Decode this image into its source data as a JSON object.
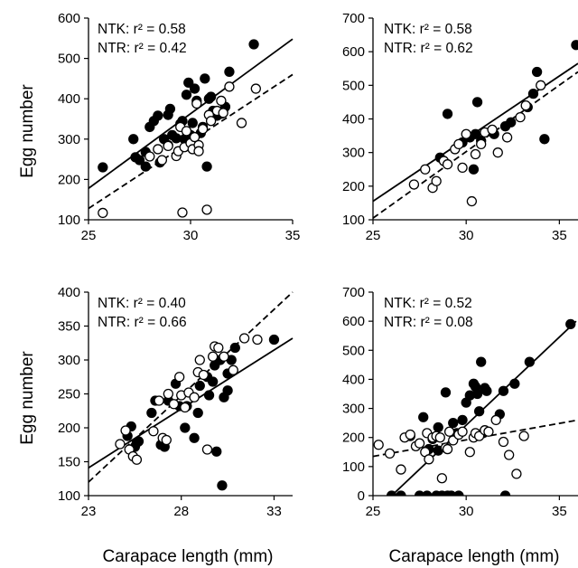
{
  "figure": {
    "ylabel": "Egg number",
    "xlabel": "Carapace length (mm)"
  },
  "chart_data": [
    {
      "type": "scatter",
      "panel": "top-left",
      "xlim": [
        25,
        35
      ],
      "ylim": [
        100,
        600
      ],
      "xticks": [
        "25",
        "30",
        "35"
      ],
      "yticks": [
        "100",
        "200",
        "300",
        "400",
        "500",
        "600"
      ],
      "xlabel": "",
      "ylabel": "Egg number",
      "grid": false,
      "annotations": [
        "NTK: r² = 0.58",
        "NTR: r² = 0.42"
      ],
      "series": [
        {
          "style": "filled",
          "line": "solid",
          "fit": [
            [
              25,
              178
            ],
            [
              35,
              548
            ]
          ],
          "points": [
            [
              25.7,
              230
            ],
            [
              27.2,
              300
            ],
            [
              27.3,
              255
            ],
            [
              27.5,
              248
            ],
            [
              27.8,
              232
            ],
            [
              27.8,
              268
            ],
            [
              28.0,
              330
            ],
            [
              28.2,
              345
            ],
            [
              28.4,
              358
            ],
            [
              28.5,
              242
            ],
            [
              28.7,
              300
            ],
            [
              28.9,
              285
            ],
            [
              28.9,
              360
            ],
            [
              29.0,
              375
            ],
            [
              29.1,
              310
            ],
            [
              29.3,
              302
            ],
            [
              29.5,
              338
            ],
            [
              29.6,
              345
            ],
            [
              29.7,
              300
            ],
            [
              29.8,
              410
            ],
            [
              29.9,
              440
            ],
            [
              30.0,
              310
            ],
            [
              30.1,
              340
            ],
            [
              30.2,
              425
            ],
            [
              30.3,
              395
            ],
            [
              30.5,
              315
            ],
            [
              30.6,
              330
            ],
            [
              30.7,
              450
            ],
            [
              30.8,
              232
            ],
            [
              30.9,
              400
            ],
            [
              31.0,
              405
            ],
            [
              31.1,
              370
            ],
            [
              31.3,
              358
            ],
            [
              31.5,
              363
            ],
            [
              31.7,
              380
            ],
            [
              31.9,
              467
            ],
            [
              33.1,
              535
            ]
          ]
        },
        {
          "style": "open",
          "line": "dashed",
          "fit": [
            [
              25,
              128
            ],
            [
              35,
              460
            ]
          ],
          "points": [
            [
              25.7,
              117
            ],
            [
              28.0,
              257
            ],
            [
              28.4,
              275
            ],
            [
              28.6,
              248
            ],
            [
              28.9,
              283
            ],
            [
              29.3,
              258
            ],
            [
              29.4,
              270
            ],
            [
              29.5,
              330
            ],
            [
              29.6,
              118
            ],
            [
              29.7,
              280
            ],
            [
              29.8,
              320
            ],
            [
              30.0,
              290
            ],
            [
              30.1,
              275
            ],
            [
              30.2,
              305
            ],
            [
              30.3,
              388
            ],
            [
              30.4,
              285
            ],
            [
              30.4,
              270
            ],
            [
              30.6,
              325
            ],
            [
              30.8,
              125
            ],
            [
              30.9,
              360
            ],
            [
              31.0,
              345
            ],
            [
              31.3,
              370
            ],
            [
              31.5,
              395
            ],
            [
              31.6,
              365
            ],
            [
              31.9,
              430
            ],
            [
              32.5,
              340
            ],
            [
              33.2,
              425
            ]
          ]
        }
      ]
    },
    {
      "type": "scatter",
      "panel": "top-right",
      "xlim": [
        25,
        36
      ],
      "ylim": [
        100,
        700
      ],
      "xticks": [
        "25",
        "30",
        "35"
      ],
      "yticks": [
        "100",
        "200",
        "300",
        "400",
        "500",
        "600",
        "700"
      ],
      "xlabel": "",
      "ylabel": "",
      "grid": false,
      "annotations": [
        "NTK: r² = 0.58",
        "NTR: r² = 0.62"
      ],
      "series": [
        {
          "style": "filled",
          "line": "solid",
          "fit": [
            [
              25,
              155
            ],
            [
              36,
              565
            ]
          ],
          "points": [
            [
              28.6,
              285
            ],
            [
              29.0,
              415
            ],
            [
              29.8,
              330
            ],
            [
              30.2,
              345
            ],
            [
              30.4,
              250
            ],
            [
              30.5,
              355
            ],
            [
              30.6,
              450
            ],
            [
              30.8,
              335
            ],
            [
              31.5,
              355
            ],
            [
              32.1,
              378
            ],
            [
              32.4,
              390
            ],
            [
              33.3,
              435
            ],
            [
              33.6,
              475
            ],
            [
              33.8,
              540
            ],
            [
              34.2,
              340
            ],
            [
              35.9,
              620
            ]
          ]
        },
        {
          "style": "open",
          "line": "dashed",
          "fit": [
            [
              25,
              105
            ],
            [
              36,
              540
            ]
          ],
          "points": [
            [
              27.2,
              205
            ],
            [
              27.8,
              250
            ],
            [
              28.2,
              195
            ],
            [
              28.4,
              215
            ],
            [
              28.8,
              275
            ],
            [
              29.0,
              265
            ],
            [
              29.4,
              310
            ],
            [
              29.6,
              325
            ],
            [
              29.8,
              255
            ],
            [
              30.0,
              355
            ],
            [
              30.3,
              155
            ],
            [
              30.5,
              295
            ],
            [
              30.8,
              325
            ],
            [
              31.0,
              360
            ],
            [
              31.4,
              368
            ],
            [
              31.7,
              300
            ],
            [
              32.2,
              345
            ],
            [
              32.9,
              405
            ],
            [
              33.2,
              440
            ],
            [
              34.0,
              500
            ]
          ]
        }
      ]
    },
    {
      "type": "scatter",
      "panel": "bottom-left",
      "xlim": [
        23,
        34
      ],
      "ylim": [
        100,
        400
      ],
      "xticks": [
        "23",
        "28",
        "33"
      ],
      "yticks": [
        "100",
        "150",
        "200",
        "250",
        "300",
        "350",
        "400"
      ],
      "xlabel": "Carapace length (mm)",
      "ylabel": "Egg number",
      "grid": false,
      "annotations": [
        "NTK: r² = 0.40",
        "NTR: r² = 0.66"
      ],
      "series": [
        {
          "style": "filled",
          "line": "solid",
          "fit": [
            [
              23,
              141
            ],
            [
              34,
              332
            ]
          ],
          "points": [
            [
              25.1,
              188
            ],
            [
              25.3,
              202
            ],
            [
              25.5,
              172
            ],
            [
              25.6,
              178
            ],
            [
              25.7,
              180
            ],
            [
              26.4,
              222
            ],
            [
              26.6,
              240
            ],
            [
              26.9,
              175
            ],
            [
              27.1,
              172
            ],
            [
              27.3,
              240
            ],
            [
              27.7,
              265
            ],
            [
              27.9,
              232
            ],
            [
              28.2,
              200
            ],
            [
              28.3,
              232
            ],
            [
              28.7,
              185
            ],
            [
              28.9,
              222
            ],
            [
              29.0,
              262
            ],
            [
              29.4,
              275
            ],
            [
              29.5,
              248
            ],
            [
              29.7,
              268
            ],
            [
              29.8,
              292
            ],
            [
              29.9,
              165
            ],
            [
              30.1,
              300
            ],
            [
              30.2,
              115
            ],
            [
              30.3,
              245
            ],
            [
              30.5,
              280
            ],
            [
              30.5,
              255
            ],
            [
              30.7,
              300
            ],
            [
              30.9,
              318
            ],
            [
              33.0,
              330
            ]
          ]
        },
        {
          "style": "open",
          "line": "dashed",
          "fit": [
            [
              23,
              120
            ],
            [
              34,
              400
            ]
          ],
          "points": [
            [
              24.7,
              176
            ],
            [
              25.0,
              196
            ],
            [
              25.2,
              168
            ],
            [
              25.4,
              158
            ],
            [
              25.6,
              153
            ],
            [
              26.5,
              195
            ],
            [
              26.8,
              240
            ],
            [
              27.0,
              185
            ],
            [
              27.2,
              182
            ],
            [
              27.3,
              250
            ],
            [
              27.6,
              235
            ],
            [
              27.9,
              275
            ],
            [
              28.0,
              248
            ],
            [
              28.2,
              230
            ],
            [
              28.4,
              252
            ],
            [
              28.7,
              245
            ],
            [
              28.9,
              282
            ],
            [
              29.0,
              300
            ],
            [
              29.2,
              278
            ],
            [
              29.4,
              168
            ],
            [
              29.7,
              305
            ],
            [
              29.8,
              320
            ],
            [
              30.0,
              318
            ],
            [
              30.3,
              305
            ],
            [
              30.8,
              285
            ],
            [
              31.4,
              332
            ],
            [
              32.1,
              330
            ]
          ]
        }
      ]
    },
    {
      "type": "scatter",
      "panel": "bottom-right",
      "xlim": [
        25,
        36
      ],
      "ylim": [
        0,
        700
      ],
      "xticks": [
        "25",
        "30",
        "35"
      ],
      "yticks": [
        "0",
        "100",
        "200",
        "300",
        "400",
        "500",
        "600",
        "700"
      ],
      "xlabel": "Carapace length (mm)",
      "ylabel": "",
      "grid": false,
      "annotations": [
        "NTK: r² = 0.52",
        "NTR: r² = 0.08"
      ],
      "series": [
        {
          "style": "filled",
          "line": "solid",
          "fit": [
            [
              26.0,
              0
            ],
            [
              35.9,
              600
            ]
          ],
          "points": [
            [
              26.0,
              0
            ],
            [
              26.5,
              0
            ],
            [
              27.0,
              205
            ],
            [
              27.5,
              0
            ],
            [
              27.7,
              270
            ],
            [
              27.9,
              0
            ],
            [
              28.0,
              160
            ],
            [
              28.2,
              195
            ],
            [
              28.4,
              0
            ],
            [
              28.5,
              155
            ],
            [
              28.5,
              235
            ],
            [
              28.7,
              0
            ],
            [
              28.9,
              355
            ],
            [
              29.0,
              0
            ],
            [
              29.2,
              0
            ],
            [
              29.3,
              250
            ],
            [
              29.4,
              205
            ],
            [
              29.5,
              215
            ],
            [
              29.6,
              0
            ],
            [
              29.8,
              260
            ],
            [
              30.0,
              320
            ],
            [
              30.2,
              345
            ],
            [
              30.4,
              385
            ],
            [
              30.5,
              375
            ],
            [
              30.6,
              350
            ],
            [
              30.7,
              290
            ],
            [
              30.8,
              460
            ],
            [
              30.9,
              215
            ],
            [
              31.0,
              370
            ],
            [
              31.1,
              360
            ],
            [
              31.8,
              280
            ],
            [
              32.0,
              360
            ],
            [
              32.1,
              0
            ],
            [
              32.6,
              385
            ],
            [
              33.4,
              460
            ],
            [
              35.6,
              590
            ]
          ]
        },
        {
          "style": "open",
          "line": "dashed",
          "fit": [
            [
              25,
              135
            ],
            [
              36,
              260
            ]
          ],
          "points": [
            [
              25.3,
              175
            ],
            [
              25.9,
              145
            ],
            [
              26.5,
              90
            ],
            [
              26.7,
              200
            ],
            [
              27.0,
              210
            ],
            [
              27.3,
              170
            ],
            [
              27.5,
              180
            ],
            [
              27.8,
              150
            ],
            [
              27.9,
              215
            ],
            [
              28.0,
              125
            ],
            [
              28.2,
              200
            ],
            [
              28.4,
              205
            ],
            [
              28.6,
              200
            ],
            [
              28.7,
              60
            ],
            [
              28.9,
              165
            ],
            [
              29.0,
              160
            ],
            [
              29.1,
              220
            ],
            [
              29.3,
              190
            ],
            [
              29.6,
              210
            ],
            [
              29.8,
              220
            ],
            [
              30.2,
              150
            ],
            [
              30.4,
              200
            ],
            [
              30.5,
              215
            ],
            [
              30.7,
              205
            ],
            [
              31.0,
              225
            ],
            [
              31.2,
              220
            ],
            [
              31.6,
              260
            ],
            [
              32.0,
              185
            ],
            [
              32.3,
              140
            ],
            [
              32.7,
              75
            ],
            [
              33.1,
              205
            ]
          ]
        }
      ]
    }
  ]
}
